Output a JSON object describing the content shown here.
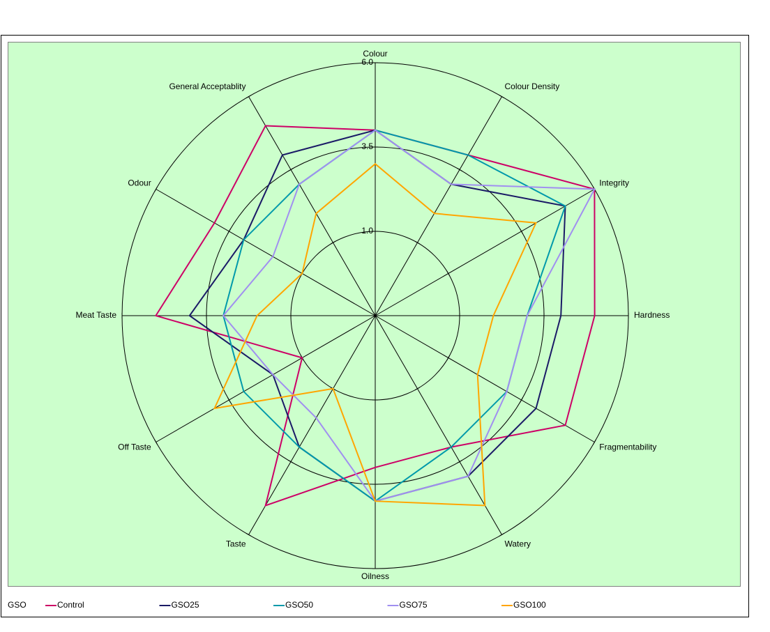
{
  "chart_data": {
    "type": "radar",
    "categories": [
      "Colour",
      "Colour Density",
      "Integrity",
      "Hardness",
      "Fragmentability",
      "Watery",
      "Oilness",
      "Taste",
      "Off Taste",
      "Meat Taste",
      "Odour",
      "General Acceptablity"
    ],
    "series": [
      {
        "name": "Control",
        "color": "#cc0066",
        "values": [
          4.0,
          4.0,
          6.0,
          5.0,
          5.0,
          3.0,
          3.0,
          5.0,
          1.0,
          5.0,
          4.0,
          5.0
        ]
      },
      {
        "name": "GSO25",
        "color": "#1a1a66",
        "values": [
          4.0,
          3.0,
          5.0,
          4.0,
          4.0,
          4.0,
          4.0,
          3.0,
          2.0,
          4.0,
          3.0,
          4.0
        ]
      },
      {
        "name": "GSO50",
        "color": "#0099aa",
        "values": [
          4.0,
          4.0,
          5.0,
          3.0,
          3.0,
          3.0,
          4.0,
          3.0,
          3.0,
          3.0,
          3.0,
          3.0
        ]
      },
      {
        "name": "GSO75",
        "color": "#a08ff0",
        "values": [
          4.0,
          3.0,
          6.0,
          3.0,
          3.0,
          4.0,
          4.0,
          2.0,
          2.0,
          3.0,
          2.0,
          3.0
        ]
      },
      {
        "name": "GSO100",
        "color": "#ffa500",
        "values": [
          3.0,
          2.0,
          4.0,
          2.0,
          2.0,
          5.0,
          4.0,
          1.0,
          4.0,
          2.0,
          1.0,
          2.0
        ]
      }
    ],
    "legend_title": "GSO",
    "ylim": [
      -1.5,
      6.0
    ],
    "yticks": [
      {
        "value": 1,
        "label": "1.0"
      },
      {
        "value": 3.5,
        "label": "3.5"
      },
      {
        "value": 6,
        "label": "6.0"
      }
    ],
    "grid": true,
    "legend": "bottom"
  }
}
